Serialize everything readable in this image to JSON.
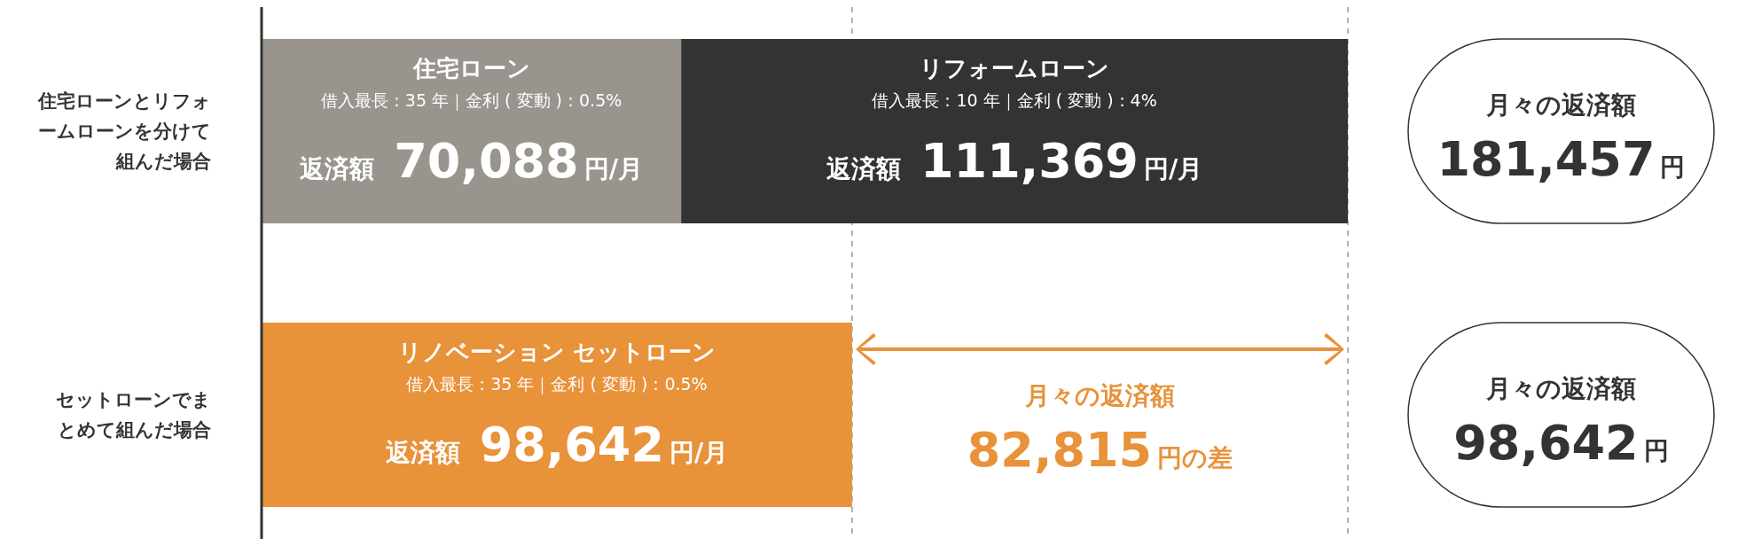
{
  "chart_data": {
    "type": "bar",
    "orientation": "horizontal",
    "stacked": true,
    "categories": [
      "住宅ローンとリフォームローンを分けて組んだ場合",
      "セットローンでまとめて組んだ場合"
    ],
    "series": [
      {
        "name": "住宅ローン",
        "color": "#99958e",
        "values": [
          70088,
          null
        ],
        "value_labels": [
          "返済額 70,088円/月",
          null
        ]
      },
      {
        "name": "リフォームローン",
        "color": "#333333",
        "values": [
          111369,
          null
        ],
        "value_labels": [
          "返済額 111,369円/月",
          null
        ]
      },
      {
        "name": "リノベーション セットローン",
        "color": "#e8923a",
        "values": [
          null,
          98642
        ],
        "value_labels": [
          null,
          "返済額 98,642円/月"
        ]
      }
    ],
    "xlim": [
      0,
      181457
    ],
    "tick_labels": "y",
    "legend": false,
    "ref_lines": [
      {
        "axis": "x",
        "value": 98642,
        "line_style": "dashed",
        "color": "#999999"
      },
      {
        "axis": "x",
        "value": 181457,
        "line_style": "dashed",
        "color": "#999999"
      }
    ],
    "annotations": [
      "借入最長：35 年｜金利 ( 変動 )：0.5%",
      "借入最長：10 年｜金利 ( 変動 )：4%",
      "借入最長：35 年｜金利 ( 変動 )：0.5%",
      "月々の返済額181,457円",
      "月々の返済額98,642円",
      "月々の返済額82,815円の差"
    ]
  }
}
